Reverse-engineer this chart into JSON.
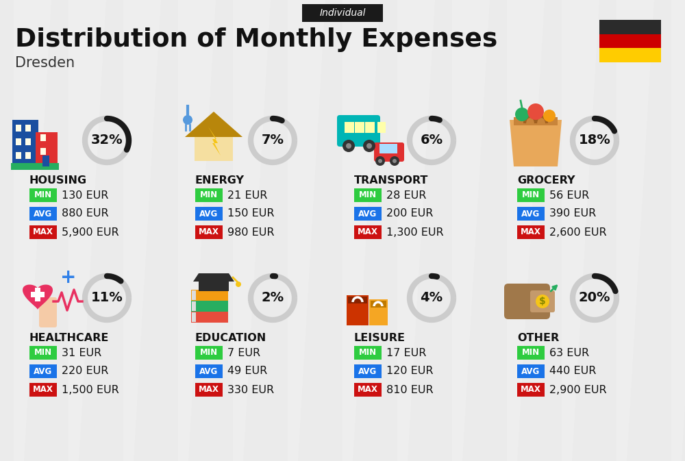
{
  "title": "Distribution of Monthly Expenses",
  "subtitle": "Individual",
  "city": "Dresden",
  "bg_color": "#ebebeb",
  "categories": [
    {
      "name": "HOUSING",
      "pct": 32,
      "min_val": "130 EUR",
      "avg_val": "880 EUR",
      "max_val": "5,900 EUR",
      "row": 0,
      "col": 0
    },
    {
      "name": "ENERGY",
      "pct": 7,
      "min_val": "21 EUR",
      "avg_val": "150 EUR",
      "max_val": "980 EUR",
      "row": 0,
      "col": 1
    },
    {
      "name": "TRANSPORT",
      "pct": 6,
      "min_val": "28 EUR",
      "avg_val": "200 EUR",
      "max_val": "1,300 EUR",
      "row": 0,
      "col": 2
    },
    {
      "name": "GROCERY",
      "pct": 18,
      "min_val": "56 EUR",
      "avg_val": "390 EUR",
      "max_val": "2,600 EUR",
      "row": 0,
      "col": 3
    },
    {
      "name": "HEALTHCARE",
      "pct": 11,
      "min_val": "31 EUR",
      "avg_val": "220 EUR",
      "max_val": "1,500 EUR",
      "row": 1,
      "col": 0
    },
    {
      "name": "EDUCATION",
      "pct": 2,
      "min_val": "7 EUR",
      "avg_val": "49 EUR",
      "max_val": "330 EUR",
      "row": 1,
      "col": 1
    },
    {
      "name": "LEISURE",
      "pct": 4,
      "min_val": "17 EUR",
      "avg_val": "120 EUR",
      "max_val": "810 EUR",
      "row": 1,
      "col": 2
    },
    {
      "name": "OTHER",
      "pct": 20,
      "min_val": "63 EUR",
      "avg_val": "440 EUR",
      "max_val": "2,900 EUR",
      "row": 1,
      "col": 3
    }
  ],
  "min_color": "#2ecc40",
  "avg_color": "#1a73e8",
  "max_color": "#cc1111",
  "donut_bg": "#cccccc",
  "donut_fg": "#1a1a1a",
  "germany_colors": [
    "#2b2b2b",
    "#cc0000",
    "#ffcc00"
  ],
  "stripe_color": "#ffffff",
  "stripe_alpha": 0.18
}
